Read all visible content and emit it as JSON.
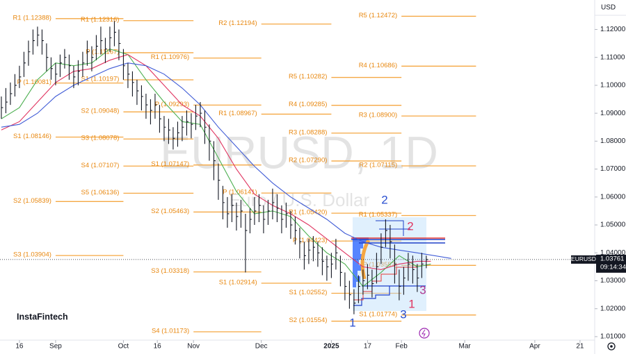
{
  "chart_data": {
    "type": "ohlc",
    "watermark": "EURUSD, 1D",
    "watermark_subtitle": "Euro / U.S. Dollar",
    "currency": "USD",
    "brand": "InstaFintech",
    "bar_color": "#131722",
    "x": [
      -24,
      -22,
      -20,
      -18,
      -16,
      -14,
      -12,
      -10,
      -8,
      -6,
      -4,
      -2,
      0,
      2,
      4,
      6,
      8,
      10,
      12,
      14,
      16,
      18,
      20,
      22,
      24,
      26,
      28,
      30,
      32,
      34,
      36,
      38,
      40,
      42,
      44,
      46,
      48,
      50,
      52,
      54,
      56,
      58,
      60,
      62,
      64,
      66,
      68,
      70,
      72,
      74,
      76,
      78,
      80,
      82,
      84,
      86,
      88,
      90,
      92,
      94,
      96,
      98,
      100,
      102,
      104,
      106,
      108,
      110,
      112,
      114,
      116,
      118,
      120,
      122,
      124,
      126,
      128,
      130,
      132,
      134,
      136,
      138,
      140,
      142,
      144,
      146,
      148,
      150,
      152,
      154,
      156,
      158,
      160,
      162,
      164
    ],
    "high": [
      1.096,
      1.099,
      1.101,
      1.104,
      1.107,
      1.112,
      1.116,
      1.12,
      1.121,
      1.12,
      1.115,
      1.11,
      1.108,
      1.111,
      1.113,
      1.111,
      1.107,
      1.109,
      1.112,
      1.116,
      1.114,
      1.118,
      1.121,
      1.117,
      1.121,
      1.123,
      1.12,
      1.113,
      1.108,
      1.105,
      1.102,
      1.1,
      1.097,
      1.095,
      1.097,
      1.093,
      1.089,
      1.088,
      1.085,
      1.087,
      1.089,
      1.091,
      1.09,
      1.093,
      1.094,
      1.091,
      1.086,
      1.08,
      1.072,
      1.064,
      1.06,
      1.061,
      1.058,
      1.059,
      1.054,
      1.056,
      1.06,
      1.061,
      1.057,
      1.059,
      1.063,
      1.061,
      1.057,
      1.058,
      1.055,
      1.053,
      1.049,
      1.044,
      1.045,
      1.046,
      1.044,
      1.042,
      1.039,
      1.04,
      1.045,
      1.039,
      1.033,
      1.03,
      1.027,
      1.032,
      1.034,
      1.036,
      1.034,
      1.04,
      1.047,
      1.052,
      1.05,
      1.043,
      1.034,
      1.035,
      1.04,
      1.039,
      1.036,
      1.04,
      1.039
    ],
    "low": [
      1.088,
      1.09,
      1.093,
      1.096,
      1.099,
      1.103,
      1.107,
      1.111,
      1.114,
      1.111,
      1.105,
      1.102,
      1.1,
      1.103,
      1.106,
      1.102,
      1.099,
      1.1,
      1.103,
      1.107,
      1.105,
      1.109,
      1.111,
      1.108,
      1.112,
      1.114,
      1.109,
      1.102,
      1.099,
      1.096,
      1.093,
      1.091,
      1.088,
      1.086,
      1.088,
      1.083,
      1.08,
      1.079,
      1.077,
      1.078,
      1.08,
      1.082,
      1.081,
      1.084,
      1.085,
      1.079,
      1.073,
      1.066,
      1.059,
      1.052,
      1.049,
      1.051,
      1.048,
      1.049,
      1.033,
      1.047,
      1.05,
      1.051,
      1.047,
      1.05,
      1.052,
      1.051,
      1.047,
      1.049,
      1.045,
      1.043,
      1.038,
      1.034,
      1.036,
      1.037,
      1.035,
      1.032,
      1.03,
      1.031,
      1.034,
      1.028,
      1.023,
      1.02,
      1.018,
      1.022,
      1.025,
      1.027,
      1.024,
      1.029,
      1.036,
      1.042,
      1.038,
      1.029,
      1.023,
      1.025,
      1.03,
      1.029,
      1.026,
      1.031,
      1.0345
    ],
    "close": [
      1.092,
      1.094,
      1.097,
      1.1,
      1.103,
      1.108,
      1.112,
      1.116,
      1.118,
      1.116,
      1.11,
      1.106,
      1.104,
      1.108,
      1.11,
      1.107,
      1.103,
      1.105,
      1.108,
      1.112,
      1.11,
      1.114,
      1.116,
      1.113,
      1.117,
      1.119,
      1.115,
      1.107,
      1.104,
      1.101,
      1.098,
      1.096,
      1.093,
      1.091,
      1.093,
      1.088,
      1.085,
      1.084,
      1.081,
      1.083,
      1.085,
      1.087,
      1.086,
      1.089,
      1.09,
      1.085,
      1.08,
      1.073,
      1.066,
      1.058,
      1.054,
      1.057,
      1.053,
      1.055,
      1.048,
      1.052,
      1.055,
      1.057,
      1.052,
      1.055,
      1.058,
      1.056,
      1.052,
      1.054,
      1.05,
      1.048,
      1.044,
      1.039,
      1.041,
      1.042,
      1.04,
      1.037,
      1.035,
      1.036,
      1.04,
      1.033,
      1.028,
      1.025,
      1.022,
      1.028,
      1.03,
      1.032,
      1.029,
      1.035,
      1.042,
      1.048,
      1.044,
      1.036,
      1.028,
      1.031,
      1.036,
      1.034,
      1.031,
      1.036,
      1.03761
    ],
    "xlim": [
      -24.6,
      238.5
    ],
    "ylim": [
      1.00875,
      1.13055
    ],
    "xticks": [
      {
        "value": -16,
        "label": "16"
      },
      {
        "value": 0,
        "label": "Sep"
      },
      {
        "value": 30,
        "label": "Oct"
      },
      {
        "value": 45,
        "label": "16"
      },
      {
        "value": 61,
        "label": "Nov"
      },
      {
        "value": 91,
        "label": "Dec"
      },
      {
        "value": 122,
        "label": "2025"
      },
      {
        "value": 138,
        "label": "17"
      },
      {
        "value": 153,
        "label": "Feb"
      },
      {
        "value": 181,
        "label": "Mar"
      },
      {
        "value": 212,
        "label": "Apr"
      },
      {
        "value": 232,
        "label": "21"
      }
    ],
    "yticks": [
      {
        "value": 1.12,
        "label": "1.12000"
      },
      {
        "value": 1.11,
        "label": "1.11000"
      },
      {
        "value": 1.1,
        "label": "1.10000"
      },
      {
        "value": 1.09,
        "label": "1.09000"
      },
      {
        "value": 1.08,
        "label": "1.08000"
      },
      {
        "value": 1.07,
        "label": "1.07000"
      },
      {
        "value": 1.06,
        "label": "1.06000"
      },
      {
        "value": 1.05,
        "label": "1.05000"
      },
      {
        "value": 1.04,
        "label": "1.04000"
      },
      {
        "value": 1.03,
        "label": "1.03000"
      },
      {
        "value": 1.02,
        "label": "1.02000"
      },
      {
        "value": 1.01,
        "label": "1.01000"
      }
    ],
    "indicators": [
      {
        "color": "#4caf50",
        "x": [
          -24,
          -16,
          -8,
          0,
          8,
          16,
          24,
          32,
          40,
          48,
          56,
          64,
          72,
          80,
          88,
          96,
          104,
          112,
          120,
          128,
          136,
          144,
          152,
          160,
          166
        ],
        "values": [
          1.088,
          1.092,
          1.102,
          1.108,
          1.107,
          1.108,
          1.113,
          1.111,
          1.102,
          1.094,
          1.087,
          1.086,
          1.074,
          1.062,
          1.054,
          1.055,
          1.053,
          1.046,
          1.04,
          1.036,
          1.028,
          1.033,
          1.039,
          1.035,
          1.036
        ]
      },
      {
        "color": "#e0335f",
        "x": [
          -24,
          -16,
          -8,
          0,
          8,
          16,
          24,
          32,
          40,
          48,
          56,
          64,
          72,
          80,
          88,
          96,
          104,
          112,
          120,
          128,
          136,
          144,
          152,
          160,
          166
        ],
        "values": [
          1.084,
          1.087,
          1.094,
          1.101,
          1.105,
          1.106,
          1.109,
          1.111,
          1.107,
          1.1,
          1.093,
          1.089,
          1.081,
          1.07,
          1.061,
          1.057,
          1.054,
          1.05,
          1.045,
          1.04,
          1.035,
          1.034,
          1.036,
          1.037,
          1.037
        ]
      },
      {
        "color": "#3f5bd6",
        "x": [
          -24,
          -16,
          -8,
          0,
          8,
          16,
          24,
          32,
          40,
          48,
          56,
          64,
          72,
          80,
          88,
          96,
          104,
          112,
          120,
          128,
          136,
          144,
          152,
          160,
          175
        ],
        "values": [
          1.085,
          1.086,
          1.09,
          1.096,
          1.1,
          1.103,
          1.106,
          1.108,
          1.107,
          1.104,
          1.099,
          1.093,
          1.085,
          1.078,
          1.071,
          1.065,
          1.06,
          1.056,
          1.052,
          1.047,
          1.044,
          1.042,
          1.041,
          1.04,
          1.038
        ]
      }
    ],
    "level_color": "#f5a742",
    "level_label_color": "#e8870e",
    "levels": [
      {
        "label": "R1 (1.12388)",
        "value": 1.12388,
        "x": [
          0,
          30
        ]
      },
      {
        "label": "P (1.10081)",
        "value": 1.10081,
        "x": [
          0,
          30
        ]
      },
      {
        "label": "S1 (1.08146)",
        "value": 1.08146,
        "x": [
          0,
          30
        ]
      },
      {
        "label": "S2 (1.05839)",
        "value": 1.05839,
        "x": [
          0,
          30
        ]
      },
      {
        "label": "S3 (1.03904)",
        "value": 1.03904,
        "x": [
          0,
          30
        ]
      },
      {
        "label": "R1 (1.12316)",
        "value": 1.12316,
        "x": [
          30,
          61
        ]
      },
      {
        "label": "P (1.11167)",
        "value": 1.11167,
        "x": [
          30,
          61
        ]
      },
      {
        "label": "S1 (1.10197)",
        "value": 1.10197,
        "x": [
          30,
          61
        ]
      },
      {
        "label": "S2 (1.09048)",
        "value": 1.09048,
        "x": [
          30,
          61
        ]
      },
      {
        "label": "S3 (1.08078)",
        "value": 1.08078,
        "x": [
          30,
          61
        ]
      },
      {
        "label": "S4 (1.07107)",
        "value": 1.07107,
        "x": [
          30,
          61
        ]
      },
      {
        "label": "S5 (1.06136)",
        "value": 1.06136,
        "x": [
          30,
          61
        ]
      },
      {
        "label": "R1 (1.10976)",
        "value": 1.10976,
        "x": [
          61,
          91
        ]
      },
      {
        "label": "P (1.09293)",
        "value": 1.09293,
        "x": [
          61,
          91
        ]
      },
      {
        "label": "S1 (1.07147)",
        "value": 1.07147,
        "x": [
          61,
          91
        ]
      },
      {
        "label": "S2 (1.05463)",
        "value": 1.05463,
        "x": [
          61,
          91
        ]
      },
      {
        "label": "S3 (1.03318)",
        "value": 1.03318,
        "x": [
          61,
          91
        ]
      },
      {
        "label": "S4 (1.01173)",
        "value": 1.01173,
        "x": [
          61,
          91
        ]
      },
      {
        "label": "R2 (1.12194)",
        "value": 1.12194,
        "x": [
          91,
          122
        ]
      },
      {
        "label": "R1 (1.08967)",
        "value": 1.08967,
        "x": [
          91,
          122
        ]
      },
      {
        "label": "P (1.06141)",
        "value": 1.06141,
        "x": [
          91,
          122
        ]
      },
      {
        "label": "S1 (1.02914)",
        "value": 1.02914,
        "x": [
          91,
          122
        ]
      },
      {
        "label": "R5 (1.10282)",
        "value": 1.10282,
        "x": [
          122,
          153
        ]
      },
      {
        "label": "R4 (1.09285)",
        "value": 1.09285,
        "x": [
          122,
          153
        ]
      },
      {
        "label": "R3 (1.08288)",
        "value": 1.08288,
        "x": [
          122,
          153
        ]
      },
      {
        "label": "R2 (1.07290)",
        "value": 1.0729,
        "x": [
          122,
          153
        ]
      },
      {
        "label": "R1 (1.05420)",
        "value": 1.0542,
        "x": [
          122,
          153
        ]
      },
      {
        "label": "P (1.04423)",
        "value": 1.04423,
        "x": [
          122,
          153
        ]
      },
      {
        "label": "S1 (1.02552)",
        "value": 1.02552,
        "x": [
          122,
          153
        ]
      },
      {
        "label": "S2 (1.01554)",
        "value": 1.01554,
        "x": [
          122,
          153
        ]
      },
      {
        "label": "R5 (1.12472)",
        "value": 1.12472,
        "x": [
          153,
          186
        ]
      },
      {
        "label": "R4 (1.10686)",
        "value": 1.10686,
        "x": [
          153,
          186
        ]
      },
      {
        "label": "R3 (1.08900)",
        "value": 1.089,
        "x": [
          153,
          186
        ]
      },
      {
        "label": "R2 (1.07115)",
        "value": 1.07115,
        "x": [
          153,
          186
        ]
      },
      {
        "label": "R1 (1.05337)",
        "value": 1.05337,
        "x": [
          153,
          186
        ]
      },
      {
        "label": "P (1.03552)",
        "value": 1.03552,
        "x": [
          153,
          186
        ]
      },
      {
        "label": "S1 (1.01774)",
        "value": 1.01774,
        "x": [
          153,
          186
        ]
      }
    ],
    "last_price": {
      "symbol": "EURUSD",
      "value": 1.03761,
      "time": "09:14:34"
    },
    "annotations": [
      {
        "text": "1",
        "color": "#2a4fd0"
      },
      {
        "text": "2",
        "color": "#2a4fd0"
      },
      {
        "text": "2",
        "color": "#e0335f"
      },
      {
        "text": "1",
        "color": "#e0335f"
      },
      {
        "text": "3",
        "color": "#b0388f"
      },
      {
        "text": "3",
        "color": "#2a4fd0"
      }
    ]
  }
}
